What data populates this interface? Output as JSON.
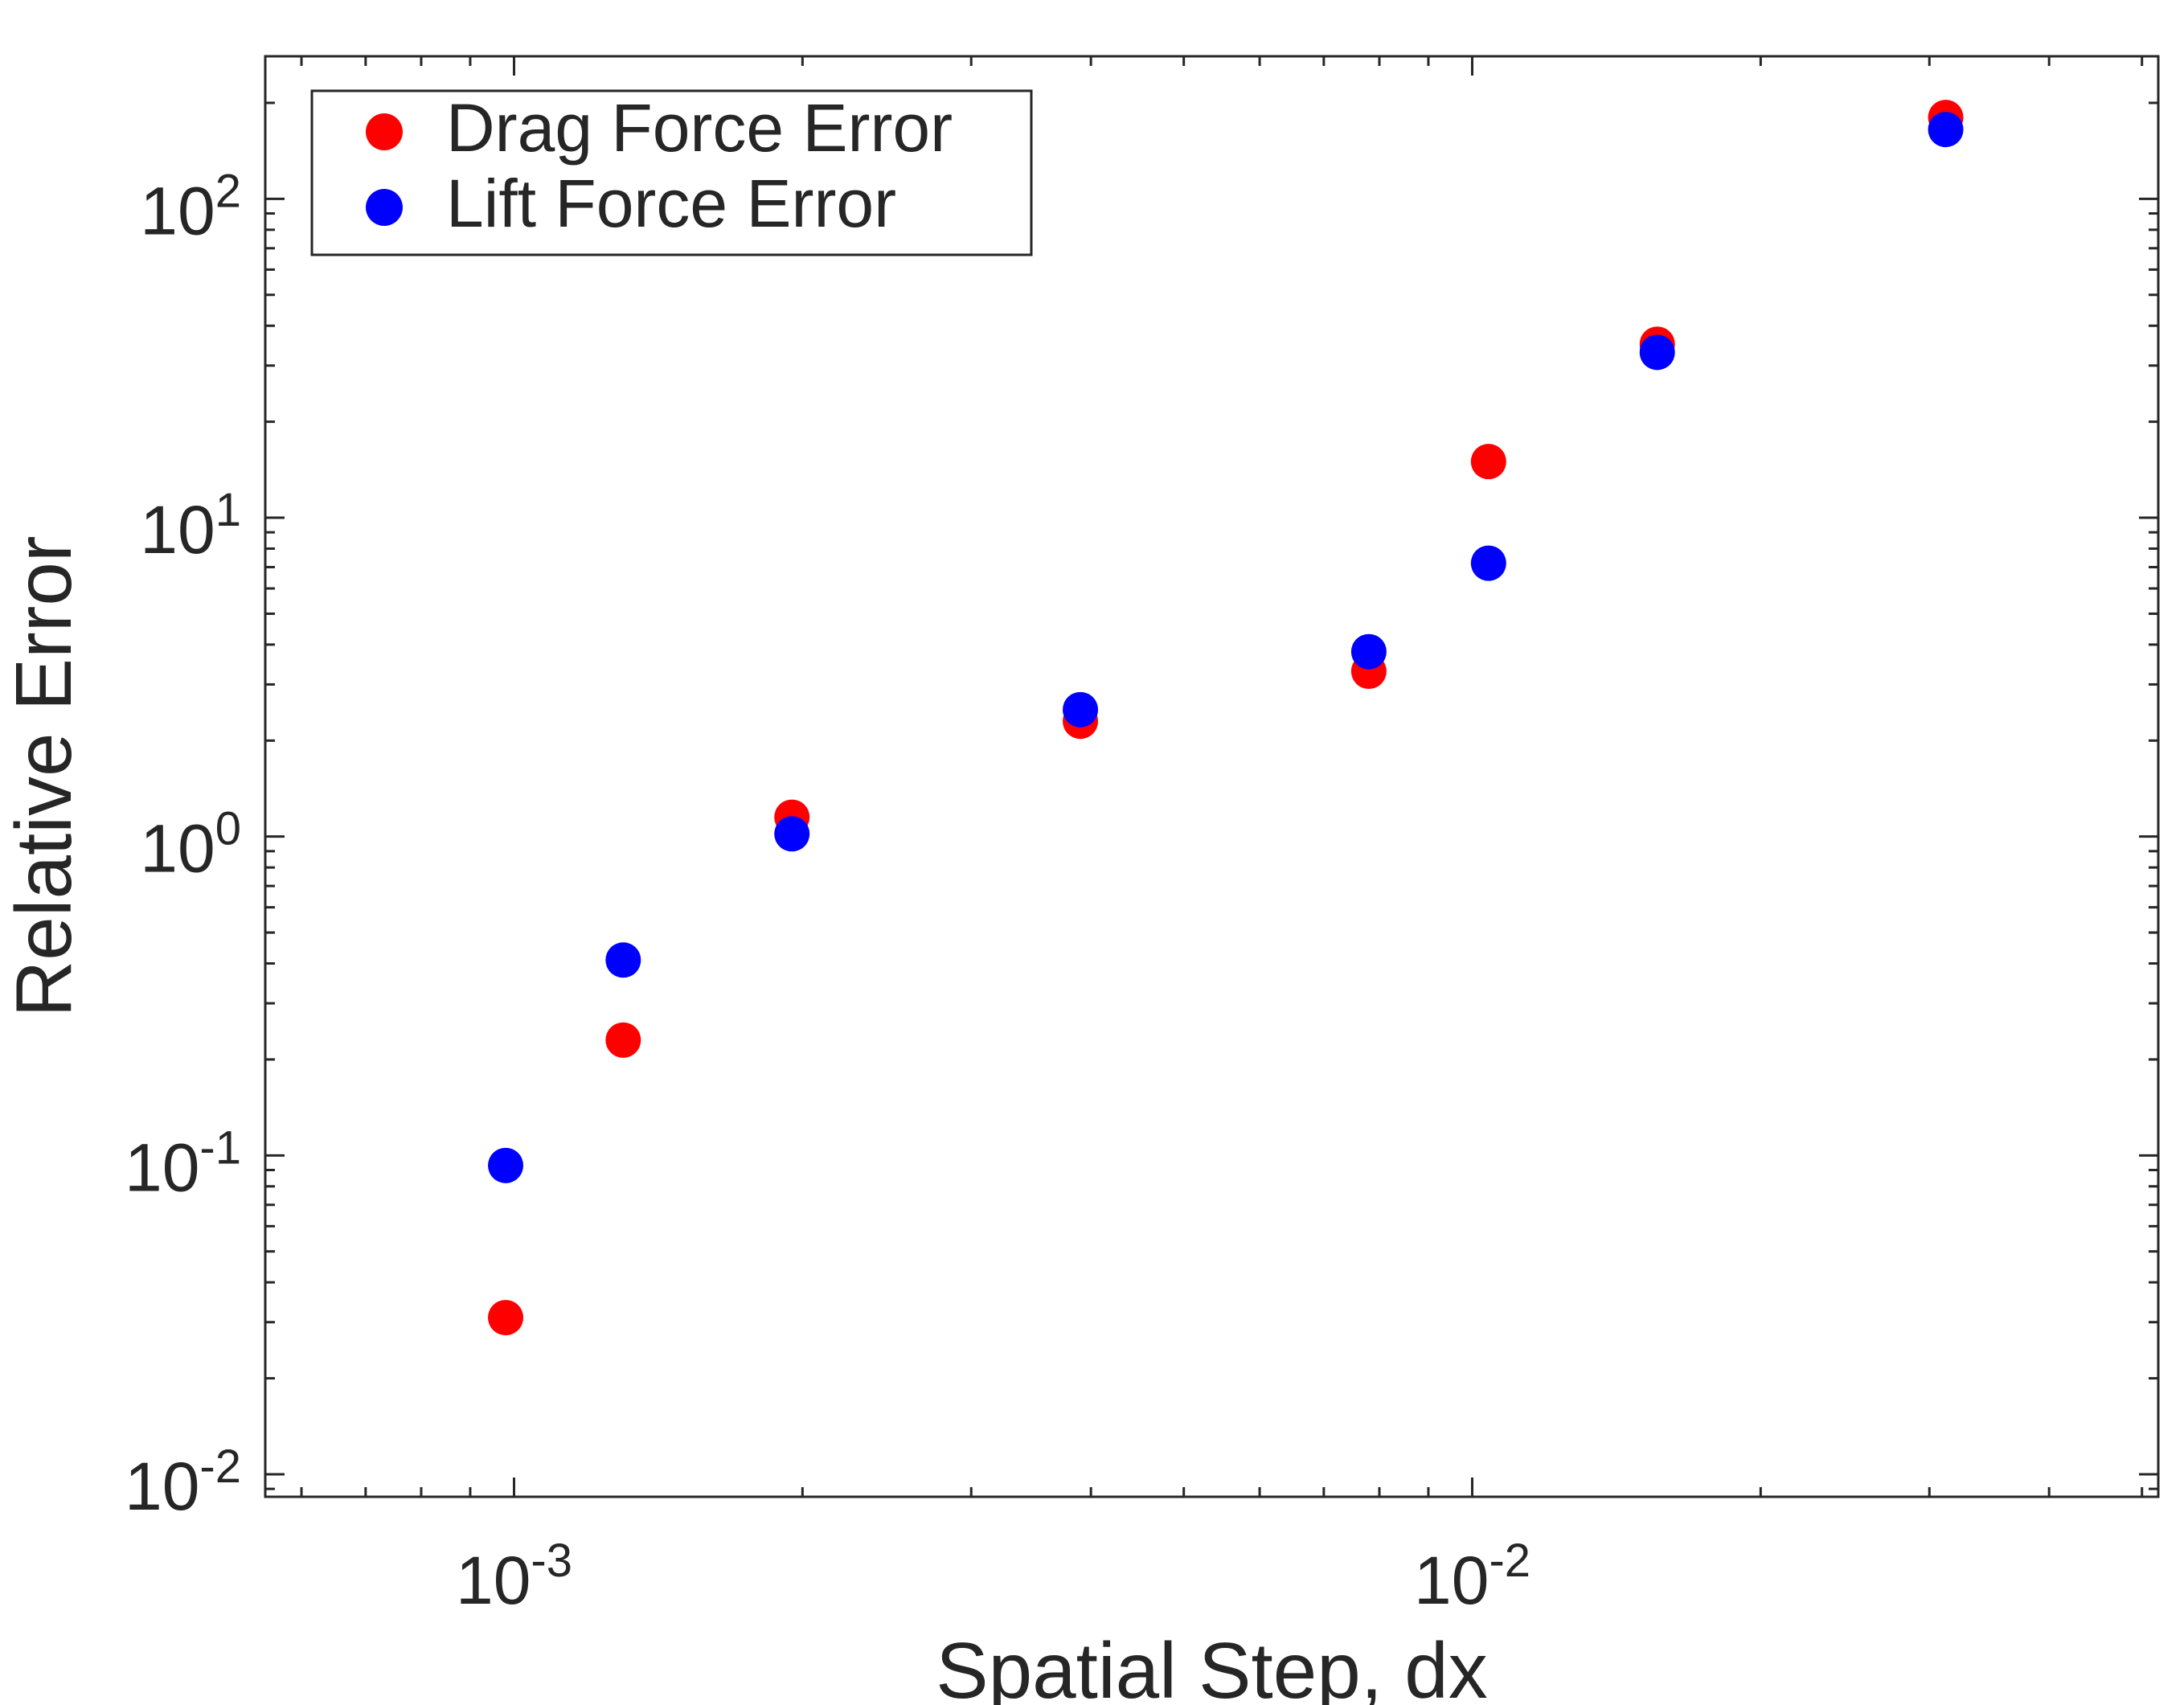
{
  "chart_data": {
    "type": "scatter",
    "title": "",
    "xlabel": "Spatial Step, dx",
    "ylabel": "Relative Error",
    "x_scale": "log",
    "y_scale": "log",
    "xlim": [
      0.00055,
      0.052
    ],
    "ylim": [
      0.0085,
      280
    ],
    "x_ticks": [
      {
        "value": 0.001,
        "base": "10",
        "exp": "-3"
      },
      {
        "value": 0.01,
        "base": "10",
        "exp": "-2"
      }
    ],
    "y_ticks": [
      {
        "value": 0.01,
        "base": "10",
        "exp": "-2"
      },
      {
        "value": 0.1,
        "base": "10",
        "exp": "-1"
      },
      {
        "value": 1,
        "base": "10",
        "exp": "0"
      },
      {
        "value": 10,
        "base": "10",
        "exp": "1"
      },
      {
        "value": 100,
        "base": "10",
        "exp": "2"
      }
    ],
    "grid": false,
    "box": true,
    "legend": {
      "position": "top-left"
    },
    "series": [
      {
        "name": "Drag Force Error",
        "color": "#ff0000",
        "x": [
          0.00098,
          0.0013,
          0.00195,
          0.0039,
          0.0078,
          0.0104,
          0.0156,
          0.0312
        ],
        "y": [
          0.031,
          0.23,
          1.15,
          2.3,
          3.3,
          15,
          35,
          180
        ]
      },
      {
        "name": "Lift Force Error",
        "color": "#0000ff",
        "x": [
          0.00098,
          0.0013,
          0.00195,
          0.0039,
          0.0078,
          0.0104,
          0.0156,
          0.0312
        ],
        "y": [
          0.093,
          0.41,
          1.02,
          2.5,
          3.8,
          7.2,
          33,
          165
        ]
      }
    ]
  }
}
